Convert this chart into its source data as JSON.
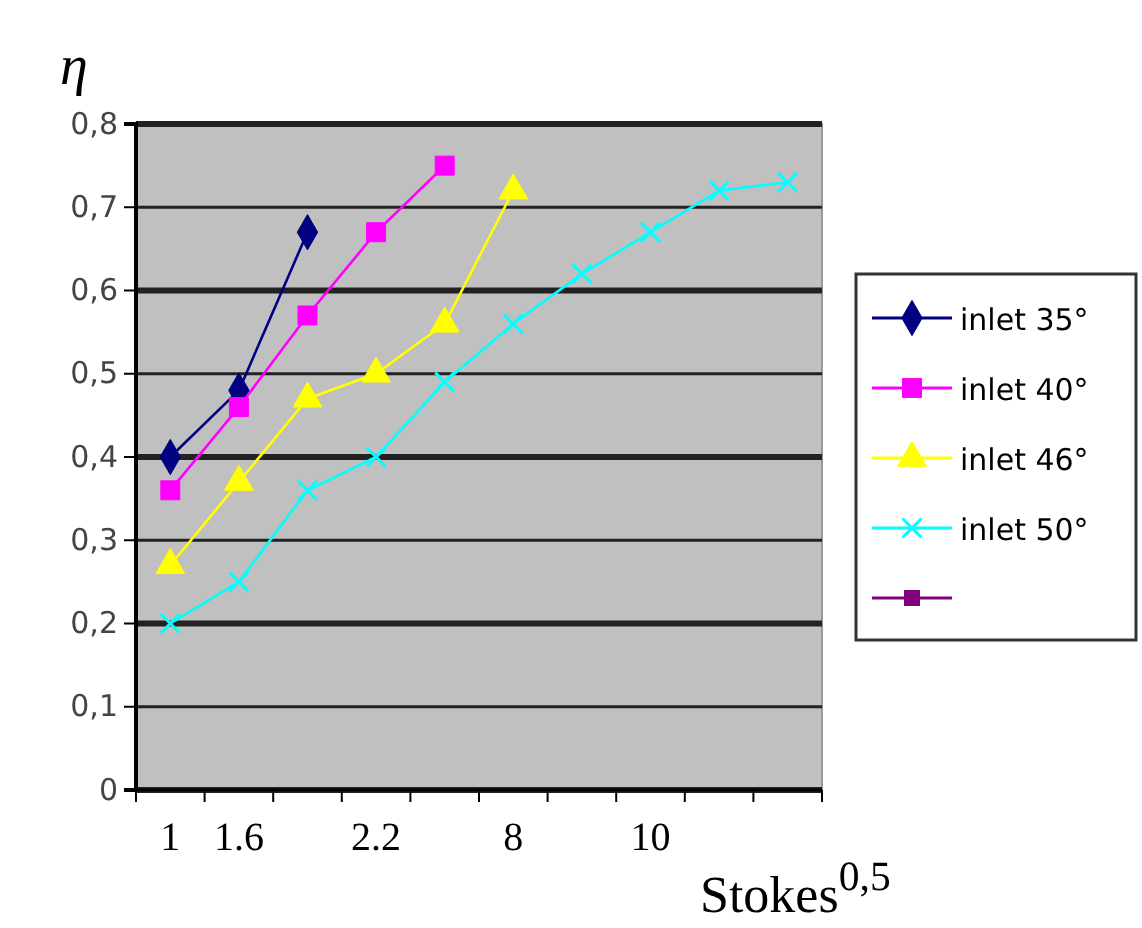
{
  "chart_data": {
    "type": "line",
    "ylabel": "η",
    "xlabel": "Stokes$^{0,5}$",
    "categories": [
      "1",
      "1.6",
      null,
      "2.2",
      null,
      "8",
      null,
      "10",
      null,
      null
    ],
    "ylim": [
      0,
      0.8
    ],
    "yticks": [
      0,
      {
        "value": 0.1,
        "label": "0,1"
      },
      {
        "value": 0.2,
        "label": "0,2"
      },
      {
        "value": 0.3,
        "label": "0,3"
      },
      {
        "value": 0.4,
        "label": "0,4"
      },
      {
        "value": 0.5,
        "label": "0,5"
      },
      {
        "value": 0.6,
        "label": "0,6"
      },
      {
        "value": 0.7,
        "label": "0,7"
      },
      {
        "value": 0.8,
        "label": "0,8"
      }
    ],
    "grid": "y",
    "legend": "right",
    "series": [
      {
        "name": "inlet 35°",
        "color": "#000080",
        "marker": "diamond",
        "values": [
          0.4,
          0.48,
          0.67,
          null,
          null,
          null,
          null,
          null,
          null,
          null
        ]
      },
      {
        "name": "inlet 40°",
        "color": "#ff00ff",
        "marker": "square",
        "values": [
          0.36,
          0.46,
          0.57,
          0.67,
          0.75,
          null,
          null,
          null,
          null,
          null
        ]
      },
      {
        "name": "inlet 46°",
        "color": "#ffff00",
        "marker": "triangle",
        "values": [
          0.27,
          0.37,
          0.47,
          0.5,
          0.56,
          0.72,
          null,
          null,
          null,
          null
        ]
      },
      {
        "name": "inlet 50°",
        "color": "#00ffff",
        "marker": "cross",
        "values": [
          0.2,
          0.25,
          0.36,
          0.4,
          0.49,
          0.56,
          0.62,
          0.67,
          0.72,
          0.73
        ]
      }
    ]
  }
}
